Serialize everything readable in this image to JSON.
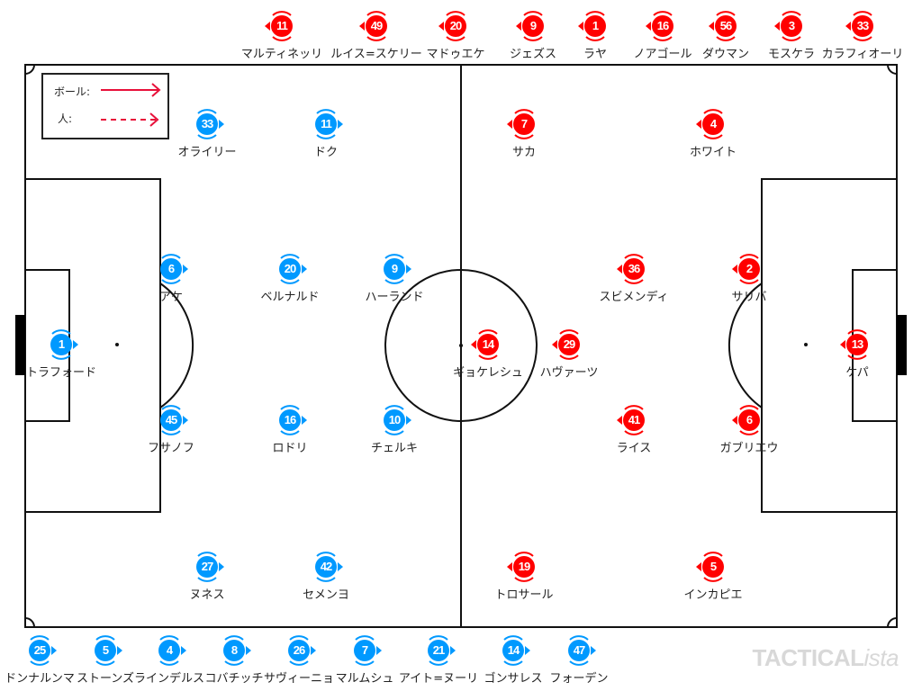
{
  "legend": {
    "ball_label": "ボール:",
    "person_label": "人:"
  },
  "brand": {
    "main": "TACTICAL",
    "suffix": "ista"
  },
  "colors": {
    "home": "#0099ff",
    "away": "#ff0000",
    "arrow": "#e8103a",
    "line": "#111111"
  },
  "home_players": [
    {
      "number": "33",
      "name": "オライリー"
    },
    {
      "number": "11",
      "name": "ドク"
    },
    {
      "number": "6",
      "name": "アケ"
    },
    {
      "number": "20",
      "name": "ベルナルド"
    },
    {
      "number": "9",
      "name": "ハーランド"
    },
    {
      "number": "1",
      "name": "トラフォード"
    },
    {
      "number": "45",
      "name": "フサノフ"
    },
    {
      "number": "16",
      "name": "ロドリ"
    },
    {
      "number": "10",
      "name": "チェルキ"
    },
    {
      "number": "27",
      "name": "ヌネス"
    },
    {
      "number": "42",
      "name": "セメンヨ"
    }
  ],
  "away_players": [
    {
      "number": "7",
      "name": "サカ"
    },
    {
      "number": "4",
      "name": "ホワイト"
    },
    {
      "number": "36",
      "name": "スビメンディ"
    },
    {
      "number": "2",
      "name": "サリバ"
    },
    {
      "number": "14",
      "name": "ギョケレシュ"
    },
    {
      "number": "29",
      "name": "ハヴァーツ"
    },
    {
      "number": "13",
      "name": "ケパ"
    },
    {
      "number": "41",
      "name": "ライス"
    },
    {
      "number": "6",
      "name": "ガブリエウ"
    },
    {
      "number": "19",
      "name": "トロサール"
    },
    {
      "number": "5",
      "name": "インカピエ"
    }
  ],
  "away_bench": [
    {
      "number": "11",
      "name": "マルティネッリ"
    },
    {
      "number": "49",
      "name": "ルイス=スケリー"
    },
    {
      "number": "20",
      "name": "マドゥエケ"
    },
    {
      "number": "9",
      "name": "ジェズス"
    },
    {
      "number": "1",
      "name": "ラヤ"
    },
    {
      "number": "16",
      "name": "ノアゴール"
    },
    {
      "number": "56",
      "name": "ダウマン"
    },
    {
      "number": "3",
      "name": "モスケラ"
    },
    {
      "number": "33",
      "name": "カラフィオーリ"
    }
  ],
  "home_bench": [
    {
      "number": "25",
      "name": "ドンナルンマ"
    },
    {
      "number": "5",
      "name": "ストーンズ"
    },
    {
      "number": "4",
      "name": "ラインデルス"
    },
    {
      "number": "8",
      "name": "コバチッチ"
    },
    {
      "number": "26",
      "name": "サヴィーニョ"
    },
    {
      "number": "7",
      "name": "マルムシュ"
    },
    {
      "number": "21",
      "name": "アイト=ヌーリ"
    },
    {
      "number": "14",
      "name": "ゴンサレス"
    },
    {
      "number": "47",
      "name": "フォーデン"
    }
  ]
}
